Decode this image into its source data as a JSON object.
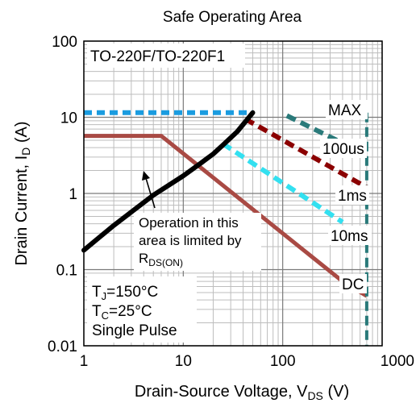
{
  "chart_data": {
    "type": "line",
    "title": "Safe Operating Area",
    "xlabel": {
      "main": "Drain-Source Voltage, V",
      "sub": "DS",
      "unit": " (V)"
    },
    "ylabel": {
      "main": "Drain Current, I",
      "sub": "D",
      "unit": " (A)"
    },
    "xscale": "log",
    "yscale": "log",
    "xlim": [
      1,
      1000
    ],
    "ylim": [
      0.01,
      100
    ],
    "grid": true,
    "x_ticks": [
      {
        "value": 1,
        "label": "1"
      },
      {
        "value": 10,
        "label": "10"
      },
      {
        "value": 100,
        "label": "100"
      },
      {
        "value": 1000,
        "label": "1000"
      }
    ],
    "y_ticks": [
      {
        "value": 100,
        "label": "100"
      },
      {
        "value": 10,
        "label": "10"
      },
      {
        "value": 1,
        "label": "1"
      },
      {
        "value": 0.1,
        "label": "0.1"
      },
      {
        "value": 0.01,
        "label": "0.01"
      }
    ],
    "package_label": "TO-220F/TO-220F1",
    "conditions": [
      {
        "pre": "T",
        "sub": "J",
        "post": "=150°C"
      },
      {
        "pre": "T",
        "sub": "C",
        "post": "=25°C"
      },
      {
        "pre": "Single Pulse",
        "sub": "",
        "post": ""
      }
    ],
    "rds_annotation": {
      "lines": [
        "Operation in this",
        "area is limited by"
      ],
      "last": {
        "pre": "R",
        "sub": "DS(ON)"
      }
    },
    "series": [
      {
        "name": "MAX",
        "color": "#1a9ce0",
        "style": "dashed",
        "points": [
          [
            1,
            11.5
          ],
          [
            50,
            11.5
          ]
        ]
      },
      {
        "name": "100us",
        "color": "#2a7a7a",
        "style": "dashed",
        "points": [
          [
            110,
            10.5
          ],
          [
            700,
            3.2
          ]
        ]
      },
      {
        "name": "1ms",
        "color": "#8b0000",
        "style": "dashed",
        "points": [
          [
            42,
            9.5
          ],
          [
            700,
            1.2
          ]
        ]
      },
      {
        "name": "10ms",
        "color": "#33e0f0",
        "style": "dashed",
        "points": [
          [
            25,
            4.5
          ],
          [
            400,
            0.42
          ]
        ]
      },
      {
        "name": "DC",
        "color": "#a94a44",
        "style": "solid",
        "points": [
          [
            1,
            5.7
          ],
          [
            6,
            5.7
          ],
          [
            400,
            0.07
          ],
          [
            700,
            0.045
          ]
        ]
      },
      {
        "name": "RDS(ON) limit",
        "color": "#000000",
        "style": "solid",
        "points": [
          [
            1,
            0.18
          ],
          [
            2,
            0.38
          ],
          [
            5,
            0.95
          ],
          [
            10,
            1.7
          ],
          [
            15,
            2.5
          ],
          [
            20,
            3.3
          ],
          [
            25,
            4.3
          ],
          [
            35,
            6.5
          ],
          [
            50,
            11.5
          ]
        ]
      },
      {
        "name": "BVDSS limit",
        "color": "#2a7a7a",
        "style": "dashed",
        "points": [
          [
            700,
            11.5
          ],
          [
            700,
            0.01
          ]
        ]
      }
    ],
    "labels": [
      {
        "text": "MAX",
        "series": "MAX"
      },
      {
        "text": "100us",
        "series": "100us"
      },
      {
        "text": "1ms",
        "series": "1ms"
      },
      {
        "text": "10ms",
        "series": "10ms"
      },
      {
        "text": "DC",
        "series": "DC"
      }
    ]
  }
}
